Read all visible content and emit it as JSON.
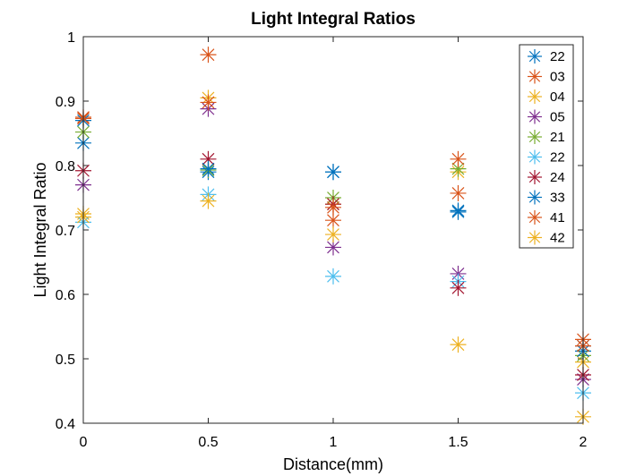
{
  "chart_data": {
    "type": "scatter",
    "title": "Light Integral Ratios",
    "xlabel": "Distance(mm)",
    "ylabel": "Light Integral Ratio",
    "xlim": [
      0,
      2
    ],
    "ylim": [
      0.4,
      1
    ],
    "xticks": [
      0,
      0.5,
      1,
      1.5,
      2
    ],
    "xtick_labels": [
      "0",
      "0.5",
      "1",
      "1.5",
      "2"
    ],
    "yticks": [
      0.4,
      0.5,
      0.6,
      0.7,
      0.8,
      0.9,
      1
    ],
    "ytick_labels": [
      "0.4",
      "0.5",
      "0.6",
      "0.7",
      "0.8",
      "0.9",
      "1"
    ],
    "grid": false,
    "legend_position": "top-right",
    "marker": "asterisk",
    "series": [
      {
        "name": "22",
        "color": "#0072BD",
        "x": [
          0,
          0.5,
          1,
          1.5,
          2
        ],
        "y": [
          0.835,
          0.79,
          0.79,
          0.73,
          0.52
        ]
      },
      {
        "name": "03",
        "color": "#D95319",
        "x": [
          0,
          0.5,
          1,
          1.5,
          2
        ],
        "y": [
          0.875,
          0.972,
          0.715,
          0.757,
          0.53
        ]
      },
      {
        "name": "04",
        "color": "#EDB120",
        "x": [
          0,
          0.5,
          1,
          1.5,
          2
        ],
        "y": [
          0.725,
          0.905,
          0.74,
          0.79,
          0.495
        ]
      },
      {
        "name": "05",
        "color": "#7E2F8E",
        "x": [
          0,
          0.5,
          1,
          1.5,
          2
        ],
        "y": [
          0.77,
          0.888,
          0.673,
          0.632,
          0.468
        ]
      },
      {
        "name": "21",
        "color": "#77AC30",
        "x": [
          0,
          0.5,
          1,
          1.5,
          2
        ],
        "y": [
          0.852,
          0.793,
          0.75,
          0.795,
          0.505
        ]
      },
      {
        "name": "22",
        "color": "#4DBEEE",
        "x": [
          0,
          0.5,
          1,
          1.5,
          2
        ],
        "y": [
          0.712,
          0.755,
          0.628,
          0.62,
          0.447
        ]
      },
      {
        "name": "24",
        "color": "#A2142F",
        "x": [
          0,
          0.5,
          1,
          1.5,
          2
        ],
        "y": [
          0.792,
          0.81,
          0.74,
          0.61,
          0.475
        ]
      },
      {
        "name": "33",
        "color": "#0072BD",
        "x": [
          0,
          0.5,
          1,
          1.5,
          2
        ],
        "y": [
          0.87,
          0.795,
          0.79,
          0.728,
          0.512
        ]
      },
      {
        "name": "41",
        "color": "#D95319",
        "x": [
          0,
          0.5,
          1,
          1.5,
          2
        ],
        "y": [
          0.873,
          0.898,
          0.735,
          0.81,
          0.52
        ]
      },
      {
        "name": "42",
        "color": "#EDB120",
        "x": [
          0,
          0.5,
          1,
          1.5,
          2
        ],
        "y": [
          0.72,
          0.745,
          0.693,
          0.522,
          0.41
        ]
      }
    ]
  }
}
